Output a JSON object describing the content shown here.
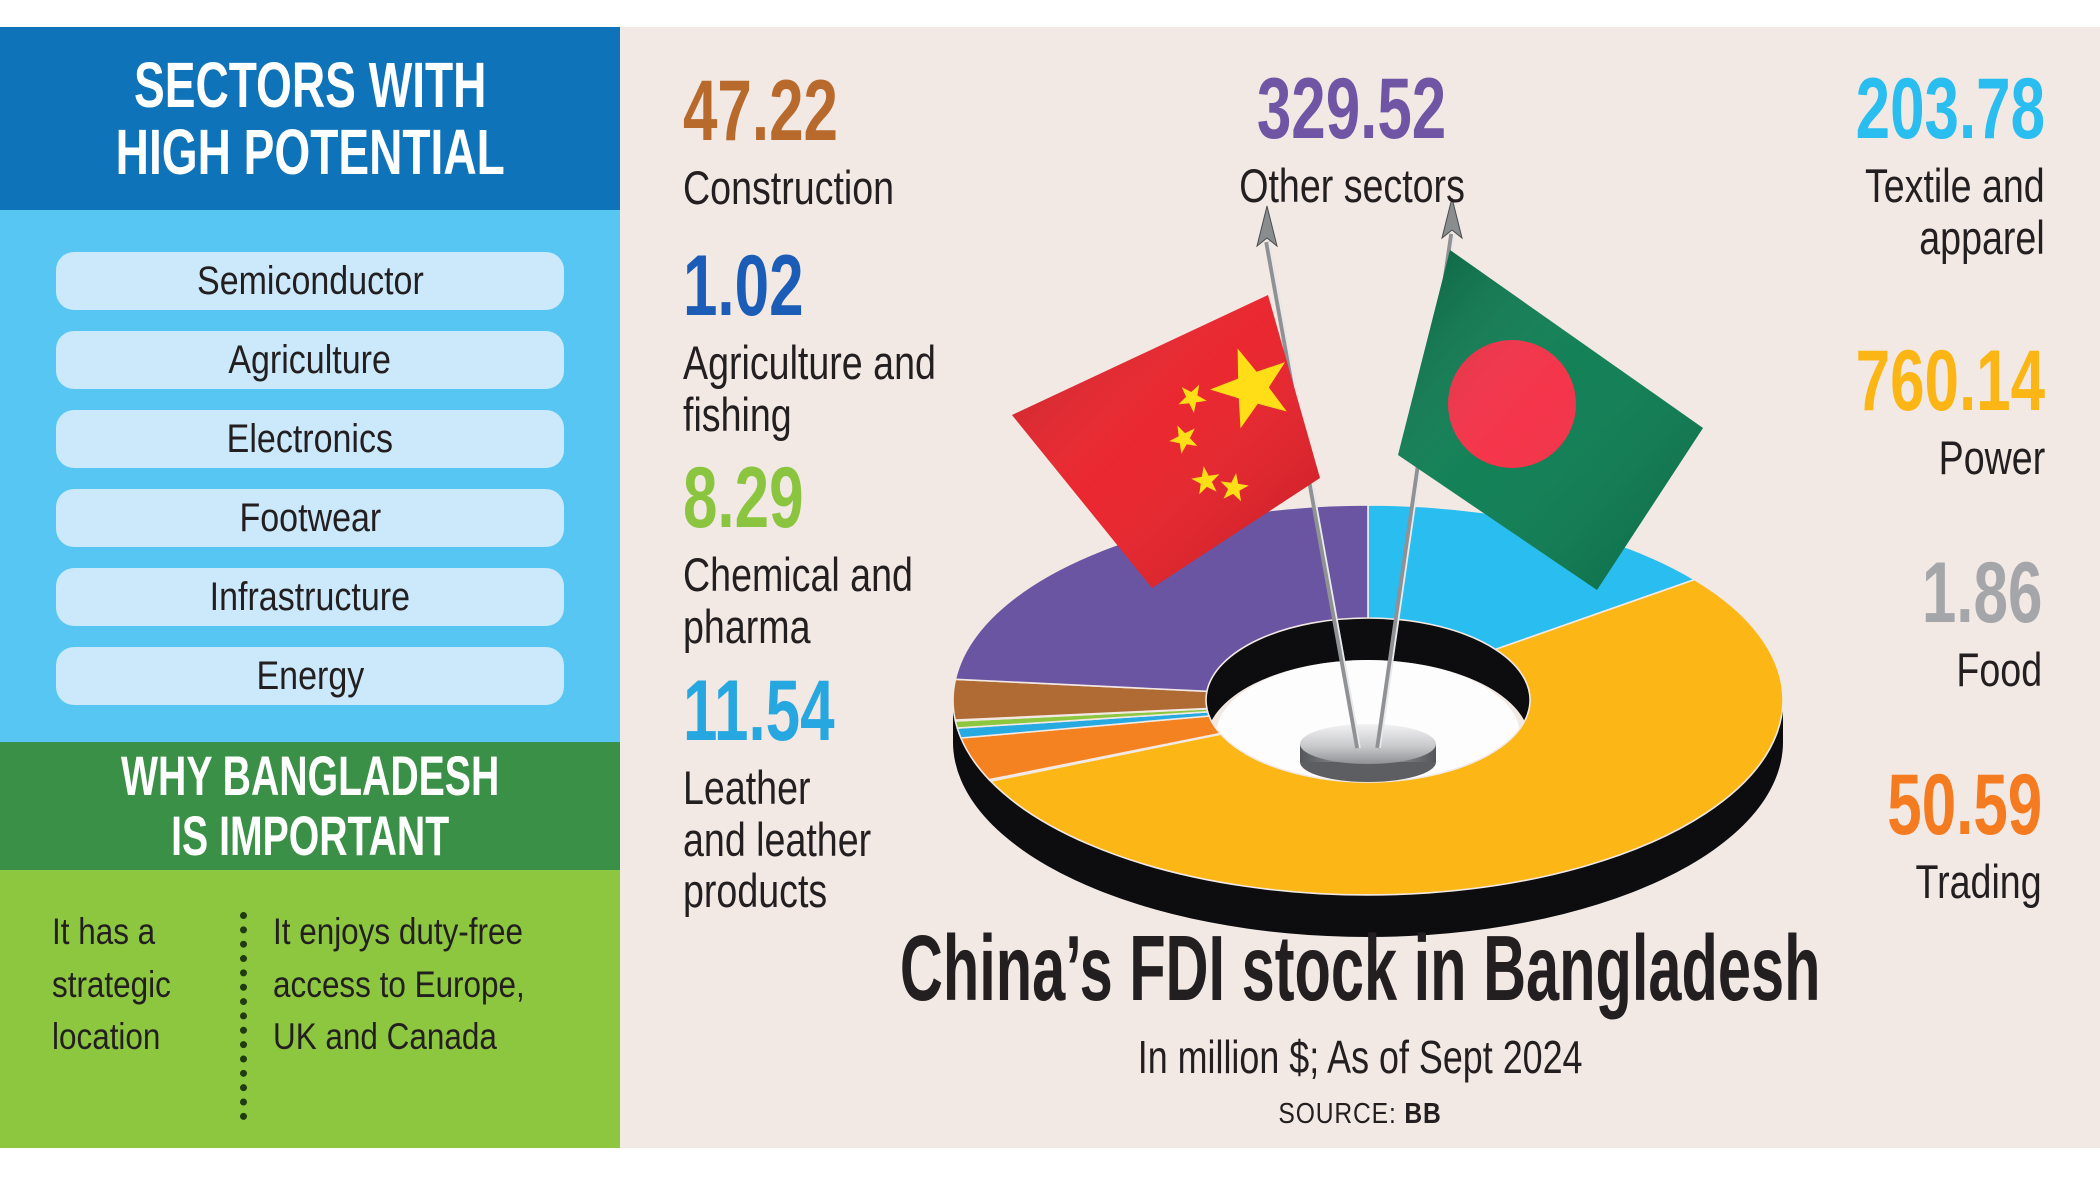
{
  "sidebar": {
    "header": "SECTORS WITH\nHIGH POTENTIAL",
    "pills": [
      "Semiconductor",
      "Agriculture",
      "Electronics",
      "Footwear",
      "Infrastructure",
      "Energy"
    ],
    "why_header": "WHY BANGLADESH\nIS IMPORTANT",
    "why_left": "It has a\nstrategic\nlocation",
    "why_right": "It enjoys duty-free\naccess to Europe,\nUK and Canada",
    "colors": {
      "header_bg": "#0e73b9",
      "body_bg": "#57c6f2",
      "pill_bg": "#cbe9fb",
      "why_header_bg": "#3a9047",
      "why_bg": "#8dc63f"
    }
  },
  "main": {
    "bg": "#f2e9e5",
    "title": "China’s FDI stock in Bangladesh",
    "subtitle": "In million $; As of Sept 2024",
    "source_label": "SOURCE:",
    "source_value": "BB",
    "callouts": {
      "construction": {
        "value": "47.22",
        "label": "Construction",
        "color": "#b8692c"
      },
      "agriculture": {
        "value": "1.02",
        "label": "Agriculture and\nfishing",
        "color": "#1b5cb7"
      },
      "chemical": {
        "value": "8.29",
        "label": "Chemical and\npharma",
        "color": "#8bc53f"
      },
      "leather": {
        "value": "11.54",
        "label": "Leather\nand leather\nproducts",
        "color": "#27a7e0"
      },
      "other": {
        "value": "329.52",
        "label": "Other sectors",
        "color": "#7055a4"
      },
      "textile": {
        "value": "203.78",
        "label": "Textile and\napparel",
        "color": "#29bdf0"
      },
      "power": {
        "value": "760.14",
        "label": "Power",
        "color": "#fbb616"
      },
      "food": {
        "value": "1.86",
        "label": "Food",
        "color": "#a4a6a9"
      },
      "trading": {
        "value": "50.59",
        "label": "Trading",
        "color": "#f47b20"
      }
    }
  },
  "chart_data": {
    "type": "pie",
    "donut": true,
    "title": "China’s FDI stock in Bangladesh",
    "subtitle": "In million $; As of Sept 2024",
    "source": "BB",
    "unit": "million $",
    "total": 1413.96,
    "start_angle_deg_from_top": 0,
    "direction": "clockwise",
    "slices": [
      {
        "label": "Textile and apparel",
        "value": 203.78,
        "color": "#2abdf0"
      },
      {
        "label": "Power",
        "value": 760.14,
        "color": "#fcb717"
      },
      {
        "label": "Food",
        "value": 1.86,
        "color": "#a7a9ac"
      },
      {
        "label": "Trading",
        "value": 50.59,
        "color": "#f58220"
      },
      {
        "label": "Leather and leather products",
        "value": 11.54,
        "color": "#27aae1"
      },
      {
        "label": "Chemical and pharma",
        "value": 8.29,
        "color": "#8dc63f"
      },
      {
        "label": "Agriculture and fishing",
        "value": 1.02,
        "color": "#1c5cb7"
      },
      {
        "label": "Construction",
        "value": 47.22,
        "color": "#b06a33"
      },
      {
        "label": "Other sectors",
        "value": 329.52,
        "color": "#6a55a3"
      }
    ]
  },
  "illustration": {
    "china_flag": {
      "field_color": "#e91c25",
      "star_color": "#ffde17"
    },
    "bangladesh_flag": {
      "field_color": "#077a4e",
      "circle_color": "#f42a41"
    },
    "pole_color": "#8f9194",
    "pole_highlight": "#e9eaea",
    "arrow_color": "#8a8d90",
    "depth_color": "#0d0d0f",
    "hole_floor": "#fdfdfd"
  }
}
